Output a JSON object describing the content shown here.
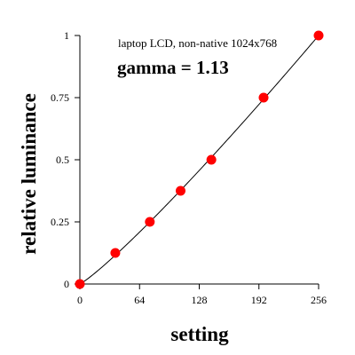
{
  "chart_data": {
    "type": "scatter",
    "annotation": "laptop LCD, non-native 1024x768",
    "title": "gamma = 1.13",
    "xlabel": "setting",
    "ylabel": "relative luminance",
    "xlim": [
      0,
      256
    ],
    "ylim": [
      0,
      1
    ],
    "x_ticks": [
      0,
      64,
      128,
      192,
      256
    ],
    "y_ticks": [
      0,
      0.25,
      0.5,
      0.75,
      1
    ],
    "x_tick_labels": [
      "0",
      "64",
      "128",
      "192",
      "256"
    ],
    "y_tick_labels": [
      "0",
      "0.25",
      "0.5",
      "0.75",
      "1"
    ],
    "grid": false,
    "marker_color": "#ff0000",
    "line_color": "#000000",
    "gamma": 1.13,
    "series": [
      {
        "x": [
          0,
          38,
          75,
          108,
          141,
          197,
          256
        ],
        "y": [
          0,
          0.125,
          0.25,
          0.375,
          0.5,
          0.75,
          1.0
        ]
      }
    ]
  }
}
